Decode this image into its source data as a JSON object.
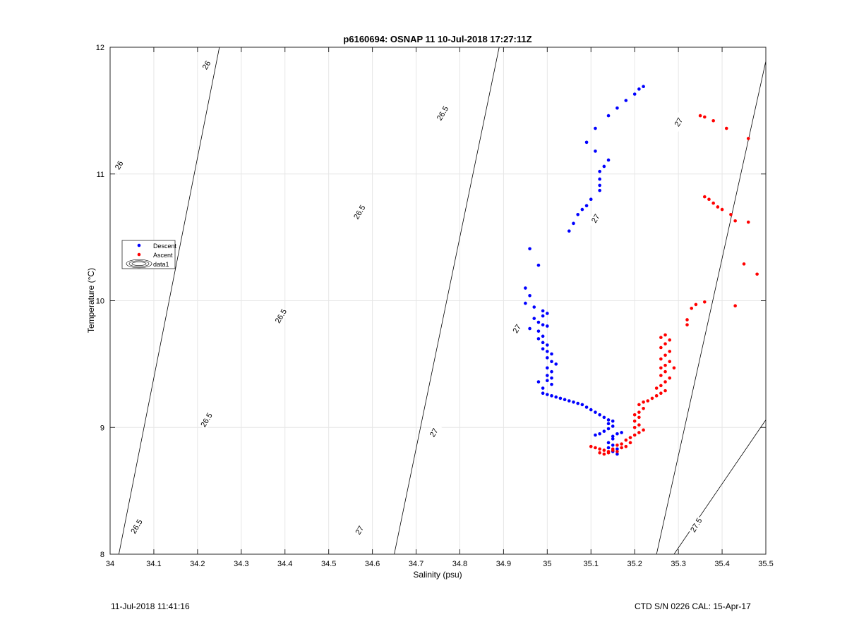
{
  "chart_data": {
    "type": "scatter",
    "title": "p6160694: OSNAP 11 10-Jul-2018 17:27:11Z",
    "xlabel": "Salinity (psu)",
    "ylabel": "Temperature (°C)",
    "xlim": [
      34,
      35.5
    ],
    "ylim": [
      8,
      12
    ],
    "xticks": [
      "34",
      "34.1",
      "34.2",
      "34.3",
      "34.4",
      "34.5",
      "34.6",
      "34.7",
      "34.8",
      "34.9",
      "35",
      "35.1",
      "35.2",
      "35.3",
      "35.4",
      "35.5"
    ],
    "yticks": [
      "8",
      "9",
      "10",
      "11",
      "12"
    ],
    "grid": true,
    "legend": {
      "position": "left-middle",
      "entries": [
        "Descent",
        "Ascent",
        "data1"
      ]
    },
    "contours": [
      {
        "level": "26",
        "labels": [
          [
            34.22,
            11.86
          ],
          [
            34.02,
            11.07
          ]
        ]
      },
      {
        "level": "26.5",
        "labels": [
          [
            34.76,
            11.48
          ],
          [
            34.57,
            10.7
          ],
          [
            34.39,
            9.88
          ],
          [
            34.22,
            9.06
          ],
          [
            34.06,
            8.22
          ]
        ]
      },
      {
        "level": "27",
        "labels": [
          [
            35.3,
            11.41
          ],
          [
            35.11,
            10.65
          ],
          [
            34.93,
            9.78
          ],
          [
            34.74,
            8.96
          ],
          [
            34.57,
            8.19
          ]
        ]
      },
      {
        "level": "27.5",
        "labels": [
          [
            35.34,
            8.23
          ]
        ]
      }
    ],
    "isopycnal_line_points": [
      [
        [
          34.02,
          8.0
        ],
        [
          34.25,
          12.0
        ]
      ],
      [
        [
          34.65,
          8.0
        ],
        [
          34.89,
          12.0
        ]
      ],
      [
        [
          35.25,
          8.0
        ],
        [
          35.5,
          11.89
        ]
      ],
      [
        [
          35.29,
          8.0
        ],
        [
          35.5,
          9.06
        ]
      ]
    ],
    "series": [
      {
        "name": "Descent",
        "color": "#0000ff",
        "points": [
          [
            35.22,
            11.69
          ],
          [
            35.21,
            11.67
          ],
          [
            35.2,
            11.63
          ],
          [
            35.18,
            11.58
          ],
          [
            35.16,
            11.52
          ],
          [
            35.14,
            11.46
          ],
          [
            35.11,
            11.36
          ],
          [
            35.09,
            11.25
          ],
          [
            35.11,
            11.18
          ],
          [
            35.14,
            11.11
          ],
          [
            35.13,
            11.06
          ],
          [
            35.12,
            11.02
          ],
          [
            35.12,
            10.96
          ],
          [
            35.12,
            10.91
          ],
          [
            35.12,
            10.87
          ],
          [
            35.1,
            10.8
          ],
          [
            35.09,
            10.75
          ],
          [
            35.08,
            10.72
          ],
          [
            35.07,
            10.68
          ],
          [
            35.06,
            10.61
          ],
          [
            35.05,
            10.55
          ],
          [
            34.96,
            10.41
          ],
          [
            34.98,
            10.28
          ],
          [
            34.95,
            10.1
          ],
          [
            34.96,
            10.04
          ],
          [
            34.95,
            9.98
          ],
          [
            34.97,
            9.95
          ],
          [
            34.99,
            9.92
          ],
          [
            35.0,
            9.9
          ],
          [
            34.99,
            9.88
          ],
          [
            34.97,
            9.86
          ],
          [
            34.98,
            9.83
          ],
          [
            34.99,
            9.81
          ],
          [
            35.0,
            9.8
          ],
          [
            34.96,
            9.78
          ],
          [
            34.98,
            9.76
          ],
          [
            34.99,
            9.72
          ],
          [
            34.98,
            9.7
          ],
          [
            34.99,
            9.67
          ],
          [
            35.0,
            9.65
          ],
          [
            34.99,
            9.62
          ],
          [
            35.0,
            9.6
          ],
          [
            35.01,
            9.58
          ],
          [
            35.0,
            9.55
          ],
          [
            35.01,
            9.52
          ],
          [
            35.02,
            9.5
          ],
          [
            35.0,
            9.47
          ],
          [
            35.01,
            9.44
          ],
          [
            35.0,
            9.41
          ],
          [
            35.01,
            9.39
          ],
          [
            35.0,
            9.37
          ],
          [
            35.01,
            9.34
          ],
          [
            34.98,
            9.36
          ],
          [
            34.99,
            9.31
          ],
          [
            34.99,
            9.27
          ],
          [
            35.0,
            9.26
          ],
          [
            35.01,
            9.25
          ],
          [
            35.02,
            9.24
          ],
          [
            35.03,
            9.23
          ],
          [
            35.04,
            9.22
          ],
          [
            35.05,
            9.21
          ],
          [
            35.06,
            9.2
          ],
          [
            35.07,
            9.19
          ],
          [
            35.08,
            9.18
          ],
          [
            35.09,
            9.16
          ],
          [
            35.1,
            9.14
          ],
          [
            35.11,
            9.12
          ],
          [
            35.12,
            9.1
          ],
          [
            35.13,
            9.08
          ],
          [
            35.14,
            9.06
          ],
          [
            35.15,
            9.05
          ],
          [
            35.14,
            9.03
          ],
          [
            35.15,
            9.01
          ],
          [
            35.14,
            8.99
          ],
          [
            35.13,
            8.97
          ],
          [
            35.12,
            8.95
          ],
          [
            35.11,
            8.94
          ],
          [
            35.15,
            8.93
          ],
          [
            35.16,
            8.95
          ],
          [
            35.17,
            8.96
          ],
          [
            35.15,
            8.91
          ],
          [
            35.14,
            8.88
          ],
          [
            35.15,
            8.86
          ],
          [
            35.14,
            8.84
          ],
          [
            35.16,
            8.83
          ],
          [
            35.15,
            8.81
          ],
          [
            35.16,
            8.79
          ]
        ]
      },
      {
        "name": "Ascent",
        "color": "#ff0000",
        "points": [
          [
            35.35,
            11.46
          ],
          [
            35.36,
            11.45
          ],
          [
            35.38,
            11.42
          ],
          [
            35.41,
            11.36
          ],
          [
            35.46,
            11.28
          ],
          [
            35.36,
            10.82
          ],
          [
            35.37,
            10.8
          ],
          [
            35.38,
            10.77
          ],
          [
            35.39,
            10.74
          ],
          [
            35.4,
            10.72
          ],
          [
            35.42,
            10.68
          ],
          [
            35.43,
            10.63
          ],
          [
            35.46,
            10.62
          ],
          [
            35.45,
            10.29
          ],
          [
            35.48,
            10.21
          ],
          [
            35.43,
            9.96
          ],
          [
            35.36,
            9.99
          ],
          [
            35.34,
            9.97
          ],
          [
            35.33,
            9.94
          ],
          [
            35.32,
            9.85
          ],
          [
            35.32,
            9.81
          ],
          [
            35.27,
            9.73
          ],
          [
            35.26,
            9.71
          ],
          [
            35.28,
            9.69
          ],
          [
            35.27,
            9.66
          ],
          [
            35.26,
            9.63
          ],
          [
            35.28,
            9.6
          ],
          [
            35.27,
            9.57
          ],
          [
            35.26,
            9.54
          ],
          [
            35.28,
            9.52
          ],
          [
            35.27,
            9.49
          ],
          [
            35.26,
            9.47
          ],
          [
            35.29,
            9.47
          ],
          [
            35.27,
            9.44
          ],
          [
            35.26,
            9.41
          ],
          [
            35.28,
            9.39
          ],
          [
            35.27,
            9.36
          ],
          [
            35.26,
            9.33
          ],
          [
            35.25,
            9.31
          ],
          [
            35.27,
            9.29
          ],
          [
            35.26,
            9.27
          ],
          [
            35.25,
            9.25
          ],
          [
            35.24,
            9.23
          ],
          [
            35.23,
            9.21
          ],
          [
            35.22,
            9.2
          ],
          [
            35.21,
            9.18
          ],
          [
            35.22,
            9.15
          ],
          [
            35.21,
            9.12
          ],
          [
            35.2,
            9.1
          ],
          [
            35.21,
            9.08
          ],
          [
            35.2,
            9.05
          ],
          [
            35.21,
            9.02
          ],
          [
            35.2,
            9.0
          ],
          [
            35.22,
            8.98
          ],
          [
            35.21,
            8.96
          ],
          [
            35.2,
            8.94
          ],
          [
            35.19,
            8.92
          ],
          [
            35.18,
            8.9
          ],
          [
            35.19,
            8.88
          ],
          [
            35.17,
            8.87
          ],
          [
            35.18,
            8.85
          ],
          [
            35.16,
            8.86
          ],
          [
            35.17,
            8.84
          ],
          [
            35.15,
            8.82
          ],
          [
            35.14,
            8.81
          ],
          [
            35.13,
            8.82
          ],
          [
            35.12,
            8.83
          ],
          [
            35.11,
            8.84
          ],
          [
            35.12,
            8.8
          ],
          [
            35.13,
            8.79
          ],
          [
            35.1,
            8.85
          ],
          [
            35.14,
            8.8
          ],
          [
            35.15,
            8.83
          ],
          [
            35.16,
            8.81
          ]
        ]
      }
    ]
  },
  "footer": {
    "left": "11-Jul-2018 11:41:16",
    "right": "CTD S/N 0226  CAL: 15-Apr-17"
  }
}
